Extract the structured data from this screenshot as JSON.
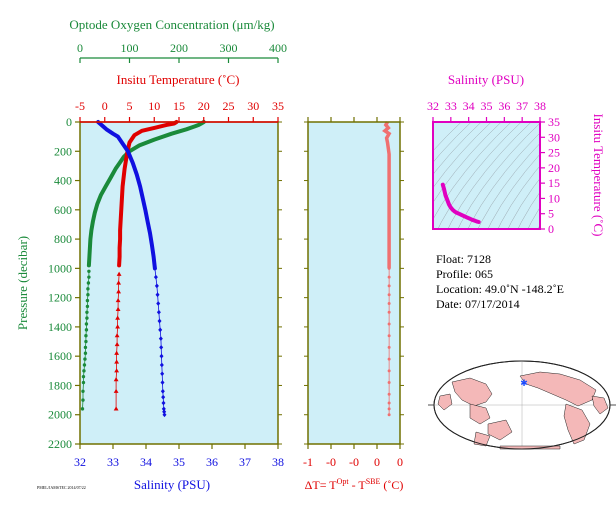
{
  "colors": {
    "plot_bg": "#cfeff8",
    "frame": "#707000",
    "oxygen": "#1a8a3a",
    "temperature": "#e00000",
    "salinity": "#1010e0",
    "delta_t": "#f07070",
    "ts_line": "#e000c0",
    "tick_salinity": "#1010e0",
    "map_land": "#f4b8b8",
    "map_ocean": "#ffffff",
    "map_marker": "#1a4aff"
  },
  "main_panel": {
    "oxygen_axis": {
      "label": "Optode Oxygen Concentration (μm/kg)",
      "ticks": [
        "0",
        "100",
        "200",
        "300",
        "400"
      ]
    },
    "temperature_axis": {
      "label": "Insitu Temperature (˚C)",
      "ticks": [
        "-5",
        "0",
        "5",
        "10",
        "15",
        "20",
        "25",
        "30",
        "35"
      ]
    },
    "salinity_axis": {
      "label": "Salinity (PSU)",
      "ticks": [
        "32",
        "33",
        "34",
        "35",
        "36",
        "37",
        "38"
      ]
    },
    "pressure_axis": {
      "label": "Pressure (decibar)",
      "ticks": [
        "0",
        "200",
        "400",
        "600",
        "800",
        "1000",
        "1200",
        "1400",
        "1600",
        "1800",
        "2000",
        "2200"
      ]
    },
    "footnote": "PMEL/JAMSTEC 2014/07/22"
  },
  "delta_panel": {
    "x_ticks": [
      "-1",
      "-0",
      "-0",
      "0",
      "0"
    ],
    "x_label": "ΔT= T",
    "sup1": "Opt",
    "mid": " - T",
    "sup2": "SBE",
    "tail": " (˚C)"
  },
  "ts_panel": {
    "top_label": "Salinity (PSU)",
    "x_ticks": [
      "32",
      "33",
      "34",
      "35",
      "36",
      "37",
      "38"
    ],
    "y_ticks": [
      "0",
      "5",
      "10",
      "15",
      "20",
      "25",
      "30",
      "35"
    ],
    "right_label": "Insitu Temperature (˚C)"
  },
  "info": {
    "float": "Float:  7128",
    "profile": "Profile:  065",
    "location": "Location:  49.0˚N  -148.2˚E",
    "date": "Date:  07/17/2014"
  },
  "chart_data": [
    {
      "type": "line",
      "name": "main_profile",
      "ylim": [
        0,
        2200
      ],
      "ylabel": "Pressure (decibar)",
      "oxygen_xlim": [
        0,
        400
      ],
      "temperature_xlim": [
        -5,
        35
      ],
      "salinity_xlim": [
        32,
        38
      ],
      "series": [
        {
          "name": "oxygen",
          "x": [
            250,
            245,
            240,
            232,
            215,
            185,
            150,
            120,
            100,
            88,
            80,
            72,
            62,
            52,
            42,
            35,
            30,
            26,
            23,
            21,
            20,
            19,
            18,
            18,
            18,
            17,
            16,
            16,
            15,
            15,
            14,
            14,
            13,
            13,
            12,
            12,
            11,
            11,
            10,
            9,
            8,
            7,
            7,
            6,
            6,
            5
          ],
          "y": [
            0,
            10,
            20,
            30,
            50,
            80,
            120,
            160,
            200,
            240,
            280,
            320,
            380,
            440,
            500,
            560,
            620,
            680,
            740,
            800,
            860,
            920,
            980,
            1020,
            1060,
            1100,
            1140,
            1180,
            1220,
            1260,
            1300,
            1340,
            1380,
            1420,
            1460,
            1500,
            1540,
            1580,
            1620,
            1660,
            1700,
            1740,
            1780,
            1840,
            1900,
            1960
          ]
        },
        {
          "name": "temperature",
          "x": [
            14.5,
            14.0,
            12.5,
            10.0,
            7.5,
            6.0,
            5.0,
            4.6,
            4.3,
            4.0,
            3.8,
            3.6,
            3.5,
            3.4,
            3.3,
            3.2,
            3.1,
            3.1,
            3.0,
            3.0,
            2.9,
            2.9,
            2.8,
            2.8,
            2.7,
            2.7,
            2.6,
            2.6,
            2.5,
            2.5,
            2.4,
            2.4,
            2.4,
            2.3,
            2.3,
            2.3
          ],
          "y": [
            0,
            10,
            20,
            40,
            60,
            90,
            140,
            200,
            260,
            320,
            380,
            440,
            500,
            560,
            620,
            680,
            740,
            800,
            860,
            920,
            980,
            1040,
            1100,
            1160,
            1220,
            1280,
            1340,
            1400,
            1460,
            1520,
            1580,
            1640,
            1700,
            1760,
            1840,
            1960
          ]
        },
        {
          "name": "salinity",
          "x": [
            32.55,
            32.65,
            32.8,
            33.0,
            33.15,
            33.3,
            33.45,
            33.6,
            33.72,
            33.82,
            33.9,
            33.98,
            34.05,
            34.12,
            34.18,
            34.23,
            34.27,
            34.3,
            34.33,
            34.35,
            34.37,
            34.39,
            34.41,
            34.43,
            34.45,
            34.46,
            34.47,
            34.48,
            34.49,
            34.5,
            34.51,
            34.52,
            34.53,
            34.54,
            34.55,
            34.56
          ],
          "y": [
            0,
            20,
            50,
            80,
            100,
            150,
            200,
            280,
            360,
            440,
            520,
            600,
            680,
            760,
            840,
            920,
            1000,
            1060,
            1120,
            1180,
            1240,
            1300,
            1360,
            1420,
            1480,
            1540,
            1600,
            1660,
            1720,
            1780,
            1840,
            1880,
            1920,
            1960,
            1980,
            2000
          ]
        }
      ]
    },
    {
      "type": "line",
      "name": "delta_t",
      "xlim": [
        -1,
        0.1
      ],
      "ylim": [
        0,
        2200
      ],
      "series": [
        {
          "name": "delta_t",
          "x": [
            -0.05,
            -0.07,
            -0.04,
            -0.08,
            -0.03,
            -0.06,
            -0.05,
            -0.04,
            -0.03,
            -0.03,
            -0.03,
            -0.03,
            -0.03,
            -0.03,
            -0.03,
            -0.03,
            -0.03,
            -0.03,
            -0.03,
            -0.03,
            -0.03,
            -0.03,
            -0.03,
            -0.03,
            -0.03,
            -0.03,
            -0.03,
            -0.03,
            -0.03,
            -0.03,
            -0.03,
            -0.03,
            -0.03,
            -0.03
          ],
          "y": [
            0,
            20,
            40,
            60,
            80,
            110,
            140,
            180,
            220,
            300,
            380,
            460,
            540,
            620,
            700,
            780,
            860,
            940,
            1000,
            1060,
            1120,
            1180,
            1240,
            1300,
            1380,
            1460,
            1540,
            1620,
            1700,
            1780,
            1860,
            1920,
            1960,
            2000
          ]
        }
      ]
    },
    {
      "type": "line",
      "name": "ts_diagram",
      "xlim": [
        32,
        38
      ],
      "ylim": [
        0,
        35
      ],
      "series": [
        {
          "name": "ts",
          "x": [
            32.55,
            32.62,
            32.7,
            32.8,
            32.9,
            33.0,
            33.1,
            33.2,
            33.3,
            33.45,
            33.6,
            33.75,
            33.9,
            34.05,
            34.2,
            34.35,
            34.5,
            34.56
          ],
          "y": [
            14.5,
            13.0,
            11.0,
            9.5,
            8.0,
            7.0,
            6.3,
            5.8,
            5.4,
            5.0,
            4.6,
            4.2,
            3.8,
            3.4,
            3.0,
            2.7,
            2.4,
            2.3
          ]
        }
      ]
    }
  ]
}
